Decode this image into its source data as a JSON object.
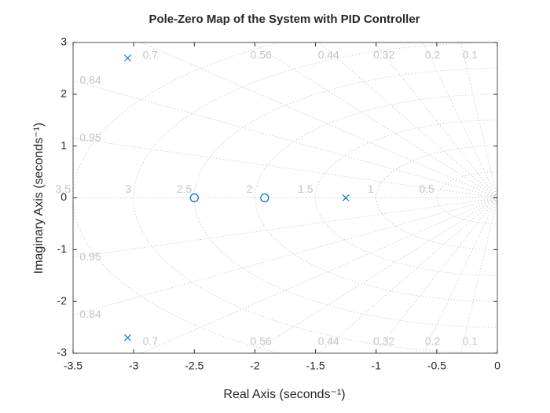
{
  "chart_data": {
    "type": "pzmap",
    "title": "Pole-Zero Map of the System with PID Controller",
    "xlabel": "Real Axis (seconds⁻¹)",
    "ylabel": "Imaginary Axis (seconds⁻¹)",
    "xlim": [
      -3.5,
      0
    ],
    "ylim": [
      -3,
      3
    ],
    "xticks": [
      -3.5,
      -3,
      -2.5,
      -2,
      -1.5,
      -1,
      -0.5,
      0
    ],
    "yticks": [
      -3,
      -2,
      -1,
      0,
      1,
      2,
      3
    ],
    "damping_ratios": [
      0.1,
      0.2,
      0.32,
      0.44,
      0.56,
      0.7,
      0.84,
      0.95
    ],
    "natural_frequencies": [
      0.5,
      1,
      1.5,
      2,
      2.5,
      3,
      3.5
    ],
    "grid_color": "#d0d0d0",
    "series": [
      {
        "name": "Poles",
        "marker": "x",
        "color": "#0072bd",
        "x": [
          -3.05,
          -3.05,
          -1.25
        ],
        "values": [
          2.7,
          -2.7,
          0
        ]
      },
      {
        "name": "Zeros",
        "marker": "o",
        "color": "#0072bd",
        "x": [
          -2.5,
          -1.92
        ],
        "values": [
          0,
          0
        ]
      }
    ]
  }
}
